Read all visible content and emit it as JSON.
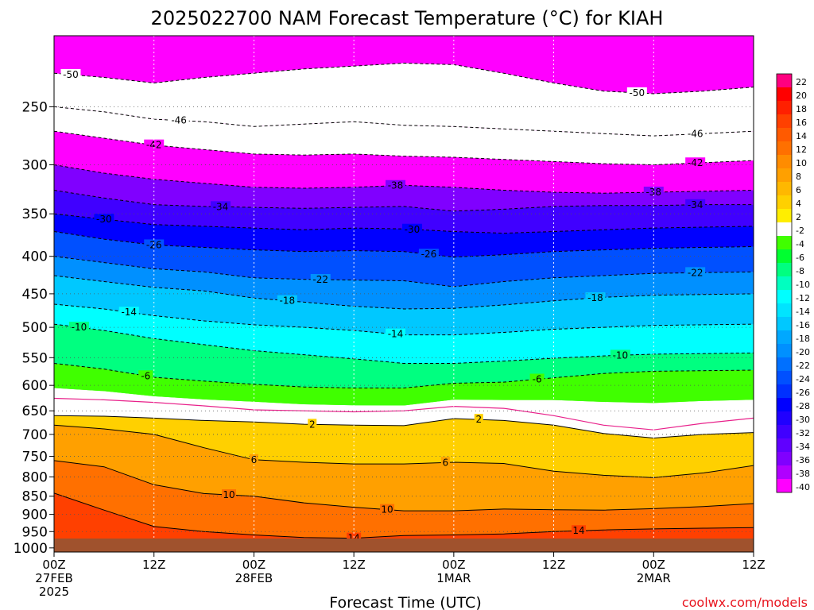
{
  "chart_data": {
    "type": "heatmap",
    "title": "2025022700 NAM Forecast Temperature (°C) for KIAH",
    "xlabel": "Forecast Time (UTC)",
    "credit": "coolwx.com/models",
    "x_ticks": [
      {
        "hour": 0,
        "lines": [
          "00Z",
          "27FEB",
          "2025"
        ]
      },
      {
        "hour": 12,
        "lines": [
          "12Z"
        ]
      },
      {
        "hour": 24,
        "lines": [
          "00Z",
          "28FEB"
        ]
      },
      {
        "hour": 36,
        "lines": [
          "12Z"
        ]
      },
      {
        "hour": 48,
        "lines": [
          "00Z",
          "1MAR"
        ]
      },
      {
        "hour": 60,
        "lines": [
          "12Z"
        ]
      },
      {
        "hour": 72,
        "lines": [
          "00Z",
          "2MAR"
        ]
      },
      {
        "hour": 84,
        "lines": [
          "12Z"
        ]
      }
    ],
    "xlim": [
      0,
      84
    ],
    "y_scale": "log",
    "y_ticks": [
      250,
      300,
      350,
      400,
      450,
      500,
      550,
      600,
      650,
      700,
      750,
      800,
      850,
      900,
      950,
      1000
    ],
    "ylim": [
      1013,
      200
    ],
    "colorbar": {
      "labels": [
        "22",
        "20",
        "18",
        "16",
        "14",
        "12",
        "10",
        "8",
        "6",
        "4",
        "2",
        "-2",
        "-4",
        "-6",
        "-8",
        "-10",
        "-12",
        "-14",
        "-16",
        "-18",
        "-20",
        "-22",
        "-24",
        "-26",
        "-28",
        "-30",
        "-32",
        "-34",
        "-36",
        "-38",
        "-40"
      ],
      "colors": [
        "#ff0080",
        "#ff0000",
        "#ff2000",
        "#ff4000",
        "#ff5a00",
        "#ff7000",
        "#ff8c00",
        "#ffa000",
        "#ffb800",
        "#ffd000",
        "#ffee00",
        "#ffffff",
        "#40ff00",
        "#00ff30",
        "#00ff80",
        "#00ffc0",
        "#00ffff",
        "#00e4ff",
        "#00c8ff",
        "#00a8ff",
        "#0090ff",
        "#0070ff",
        "#0050ff",
        "#0030ff",
        "#0000ff",
        "#2000ff",
        "#4000ff",
        "#6000ff",
        "#8000ff",
        "#b000ff",
        "#ff00ff"
      ]
    },
    "levels": [
      {
        "t": -50,
        "p": [
          225,
          228,
          232,
          228,
          225,
          222,
          220,
          218,
          219,
          225,
          232,
          238,
          240,
          238,
          235
        ],
        "label_hour": 2,
        "label2_hour": 70
      },
      {
        "t": -46,
        "p": [
          250,
          254,
          260,
          262,
          266,
          264,
          262,
          265,
          266,
          268,
          270,
          272,
          274,
          272,
          270
        ],
        "label_hour": 15,
        "label2_hour": 77
      },
      {
        "t": -42,
        "p": [
          270,
          276,
          282,
          286,
          290,
          291,
          290,
          292,
          293,
          295,
          297,
          299,
          300,
          298,
          296
        ],
        "label_hour": 12,
        "label2_hour": 77
      },
      {
        "t": -38,
        "p": [
          300,
          308,
          314,
          318,
          322,
          323,
          322,
          320,
          322,
          325,
          327,
          328,
          327,
          326,
          325
        ],
        "label_hour": 41,
        "label2_hour": 72
      },
      {
        "t": -34,
        "p": [
          325,
          333,
          340,
          342,
          343,
          344,
          343,
          342,
          347,
          345,
          342,
          341,
          341,
          340,
          340
        ],
        "label_hour": 20,
        "label2_hour": 77
      },
      {
        "t": -30,
        "p": [
          350,
          356,
          362,
          364,
          366,
          368,
          366,
          367,
          370,
          372,
          370,
          368,
          366,
          365,
          364
        ],
        "label_hour": 6,
        "label2_hour": 43
      },
      {
        "t": -26,
        "p": [
          370,
          379,
          386,
          389,
          392,
          394,
          393,
          394,
          401,
          398,
          394,
          392,
          390,
          389,
          388
        ],
        "label_hour": 12,
        "label2_hour": 45
      },
      {
        "t": -22,
        "p": [
          400,
          408,
          416,
          420,
          428,
          430,
          431,
          432,
          440,
          433,
          428,
          425,
          422,
          421,
          420
        ],
        "label_hour": 32,
        "label2_hour": 77
      },
      {
        "t": -18,
        "p": [
          425,
          433,
          441,
          446,
          456,
          462,
          468,
          472,
          471,
          466,
          460,
          455,
          452,
          451,
          450
        ],
        "label_hour": 28,
        "label2_hour": 65
      },
      {
        "t": -14,
        "p": [
          465,
          472,
          482,
          490,
          496,
          500,
          505,
          512,
          512,
          508,
          503,
          500,
          497,
          496,
          495
        ],
        "label_hour": 9,
        "label2_hour": 41
      },
      {
        "t": -10,
        "p": [
          495,
          505,
          518,
          528,
          538,
          545,
          552,
          560,
          560,
          556,
          551,
          547,
          544,
          543,
          542
        ],
        "label_hour": 3,
        "label2_hour": 68
      },
      {
        "t": -6,
        "p": [
          560,
          570,
          585,
          592,
          598,
          603,
          605,
          605,
          596,
          594,
          586,
          578,
          574,
          573,
          572
        ],
        "label_hour": 11,
        "label2_hour": 58
      },
      {
        "t": 2,
        "p": [
          660,
          661,
          665,
          670,
          673,
          678,
          680,
          681,
          666,
          670,
          680,
          698,
          708,
          700,
          696
        ],
        "label_hour": 31,
        "label2_hour": 51
      },
      {
        "t": 6,
        "p": [
          680,
          688,
          700,
          730,
          758,
          764,
          768,
          768,
          764,
          767,
          786,
          796,
          802,
          790,
          772
        ],
        "label_hour": 24,
        "label2_hour": 47
      },
      {
        "t": 10,
        "p": [
          760,
          775,
          820,
          843,
          850,
          868,
          880,
          890,
          890,
          885,
          887,
          888,
          884,
          878,
          870
        ],
        "label_hour": 21,
        "label2_hour": 40
      },
      {
        "t": 14,
        "p": [
          842,
          888,
          935,
          950,
          960,
          968,
          970,
          962,
          960,
          957,
          950,
          945,
          942,
          940,
          938
        ],
        "label_hour": 36,
        "label2_hour": 63
      }
    ],
    "freezing_level_line": {
      "t": 0,
      "p": [
        625,
        628,
        633,
        640,
        648,
        650,
        652,
        650,
        641,
        645,
        660,
        680,
        690,
        676,
        665
      ]
    }
  }
}
